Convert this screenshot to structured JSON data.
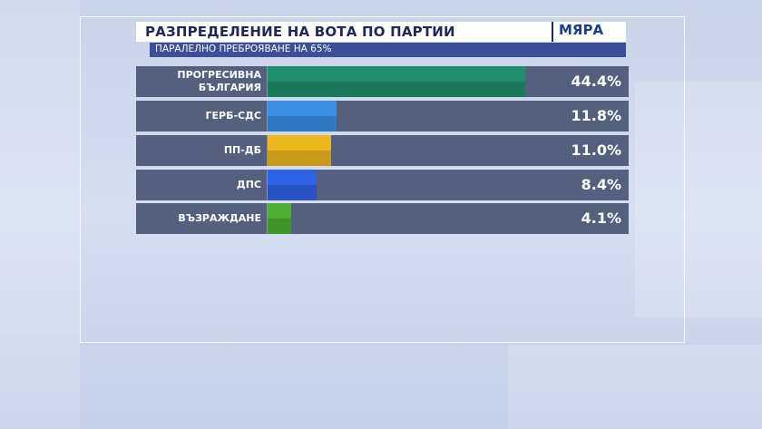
{
  "chart_data": {
    "type": "bar",
    "orientation": "horizontal",
    "title": "РАЗПРЕДЕЛЕНИЕ НА ВОТА ПО ПАРТИИ",
    "subtitle": "ПАРАЛЕЛНО ПРЕБРОЯВАНЕ НА 65%",
    "logo": "МЯРА",
    "categories": [
      "ПРОГРЕСИВНА БЪЛГАРИЯ",
      "ГЕРБ-СДС",
      "ПП-ДБ",
      "ДПС",
      "ВЪЗРАЖДАНЕ"
    ],
    "values": [
      44.4,
      11.8,
      11.0,
      8.4,
      4.1
    ],
    "value_labels": [
      "44.4%",
      "11.8%",
      "11.0%",
      "8.4%",
      "4.1%"
    ],
    "colors": [
      "#1f8f6c",
      "#3b8fe6",
      "#ecb81e",
      "#2f63e6",
      "#4caf32"
    ]
  }
}
